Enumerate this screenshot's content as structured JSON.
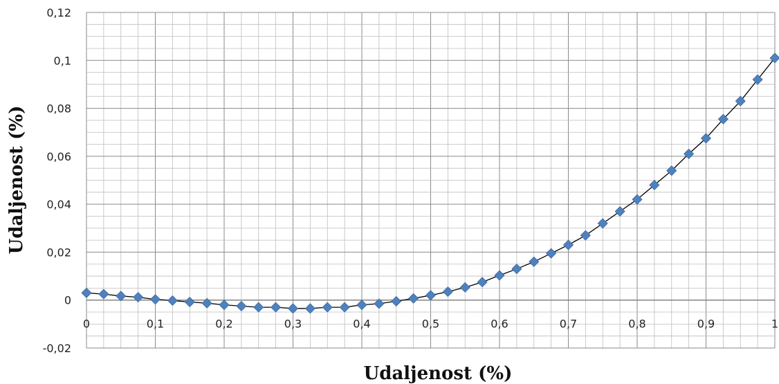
{
  "chart_data": {
    "type": "scatter",
    "title": "",
    "xlabel": "Udaljenost (%)",
    "ylabel": "Udaljenost (%)",
    "xlim": [
      0,
      1
    ],
    "ylim": [
      -0.02,
      0.12
    ],
    "x_ticks": [
      "0",
      "0,1",
      "0,2",
      "0,3",
      "0,4",
      "0,5",
      "0,6",
      "0,7",
      "0,8",
      "0,9",
      "1"
    ],
    "y_ticks": [
      "-0,02",
      "0",
      "0,02",
      "0,04",
      "0,06",
      "0,08",
      "0,1",
      "0,12"
    ],
    "grid": true,
    "legend": "none",
    "marker": "diamond",
    "marker_color": "#4F81BD",
    "line_color": "#000000",
    "series": [
      {
        "x": [
          0,
          0.025,
          0.05,
          0.075,
          0.1,
          0.125,
          0.15,
          0.175,
          0.2,
          0.225,
          0.25,
          0.275,
          0.3,
          0.325,
          0.35,
          0.375,
          0.4,
          0.425,
          0.45,
          0.475,
          0.5,
          0.525,
          0.55,
          0.575,
          0.6,
          0.625,
          0.65,
          0.675,
          0.7,
          0.725,
          0.75,
          0.775,
          0.8,
          0.825,
          0.85,
          0.875,
          0.9,
          0.925,
          0.95,
          0.975,
          1.0
        ],
        "y": [
          0.003,
          0.0025,
          0.0017,
          0.0012,
          0.0003,
          -0.0002,
          -0.0008,
          -0.0013,
          -0.002,
          -0.0025,
          -0.003,
          -0.003,
          -0.0035,
          -0.0035,
          -0.003,
          -0.003,
          -0.002,
          -0.0015,
          -0.0005,
          0.0007,
          0.002,
          0.0035,
          0.0053,
          0.0075,
          0.0103,
          0.013,
          0.016,
          0.0195,
          0.023,
          0.027,
          0.032,
          0.037,
          0.042,
          0.048,
          0.054,
          0.061,
          0.0675,
          0.0755,
          0.083,
          0.092,
          0.101
        ]
      }
    ]
  }
}
